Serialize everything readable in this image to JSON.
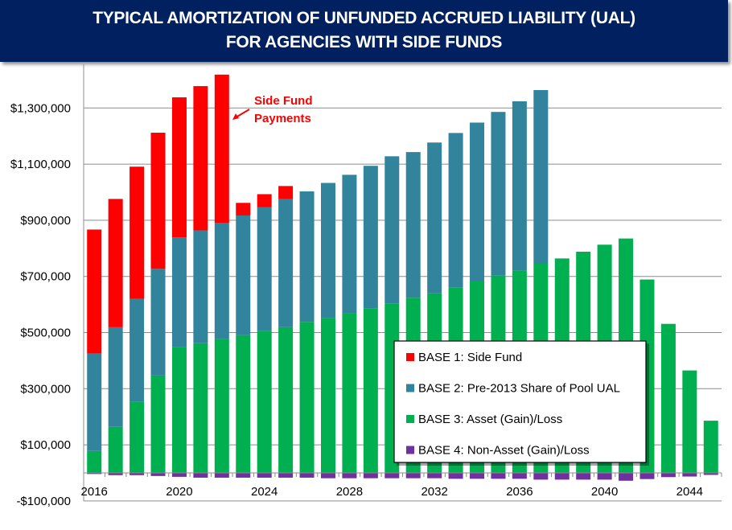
{
  "header": {
    "title_line1": "TYPICAL AMORTIZATION OF UNFUNDED ACCRUED LIABILITY (UAL)",
    "title_line2": "FOR AGENCIES WITH SIDE FUNDS"
  },
  "chart_data": {
    "type": "bar",
    "stacked": true,
    "title": "TYPICAL AMORTIZATION OF UNFUNDED ACCRUED LIABILITY (UAL) FOR AGENCIES WITH SIDE FUNDS",
    "xlabel": "",
    "ylabel": "",
    "ylim": [
      -100000,
      1450000
    ],
    "grid": true,
    "legend_position": "bottom-right",
    "y_ticks": [
      -100000,
      100000,
      300000,
      500000,
      700000,
      900000,
      1100000,
      1300000
    ],
    "y_tick_labels": [
      "-$100,000",
      "$100,000",
      "$300,000",
      "$500,000",
      "$700,000",
      "$900,000",
      "$1,100,000",
      "$1,300,000"
    ],
    "x_tick_labels": [
      "2016",
      "2020",
      "2024",
      "2028",
      "2032",
      "2036",
      "2040",
      "2044"
    ],
    "categories": [
      2016,
      2017,
      2018,
      2019,
      2020,
      2021,
      2022,
      2023,
      2024,
      2025,
      2026,
      2027,
      2028,
      2029,
      2030,
      2031,
      2032,
      2033,
      2034,
      2035,
      2036,
      2037,
      2038,
      2039,
      2040,
      2041,
      2042,
      2043,
      2044,
      2045
    ],
    "series": [
      {
        "name": "BASE 4: Non-Asset (Gain)/Loss",
        "color": "#7030a0",
        "values": [
          -4000,
          -8000,
          -8000,
          -11000,
          -14000,
          -17000,
          -17000,
          -17000,
          -17000,
          -17000,
          -17000,
          -19000,
          -19000,
          -19000,
          -19000,
          -19000,
          -19000,
          -21000,
          -21000,
          -21000,
          -21000,
          -24000,
          -24000,
          -24000,
          -24000,
          -28000,
          -22000,
          -15000,
          -13000,
          -7000
        ]
      },
      {
        "name": "BASE 3: Asset (Gain)/Loss",
        "color": "#00b050",
        "values": [
          78000,
          164000,
          253000,
          347000,
          448000,
          462000,
          476000,
          491000,
          505000,
          519000,
          538000,
          552000,
          569000,
          587000,
          604000,
          624000,
          640000,
          661000,
          682000,
          703000,
          721000,
          745000,
          764000,
          788000,
          813000,
          835000,
          689000,
          531000,
          365000,
          186000
        ]
      },
      {
        "name": "BASE 2: Pre-2013 Share of Pool UAL",
        "color": "#31849b",
        "values": [
          347000,
          355000,
          367000,
          380000,
          391000,
          402000,
          415000,
          426000,
          441000,
          456000,
          465000,
          481000,
          493000,
          507000,
          524000,
          519000,
          537000,
          550000,
          566000,
          583000,
          603000,
          619000,
          0,
          0,
          0,
          0,
          0,
          0,
          0,
          0
        ]
      },
      {
        "name": "BASE 1: Side Fund",
        "color": "#ff0000",
        "values": [
          442000,
          457000,
          471000,
          485000,
          499000,
          514000,
          528000,
          45000,
          47000,
          47000,
          0,
          0,
          0,
          0,
          0,
          0,
          0,
          0,
          0,
          0,
          0,
          0,
          0,
          0,
          0,
          0,
          0,
          0,
          0,
          0
        ]
      }
    ],
    "legend": [
      "BASE 1: Side Fund",
      "BASE 2: Pre-2013 Share of Pool UAL",
      "BASE 3: Asset (Gain)/Loss",
      "BASE 4: Non-Asset (Gain)/Loss"
    ],
    "annotation": {
      "line1": "Side Fund",
      "line2": "Payments",
      "color": "#ff0000"
    }
  }
}
